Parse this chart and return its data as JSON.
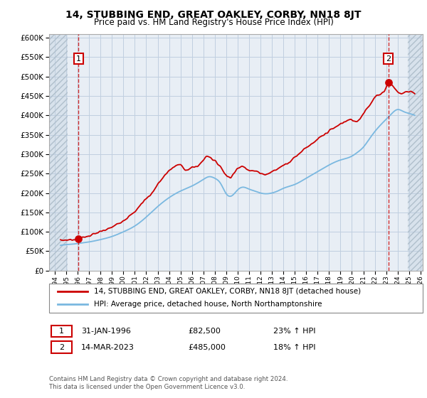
{
  "title": "14, STUBBING END, GREAT OAKLEY, CORBY, NN18 8JT",
  "subtitle": "Price paid vs. HM Land Registry's House Price Index (HPI)",
  "legend_line1": "14, STUBBING END, GREAT OAKLEY, CORBY, NN18 8JT (detached house)",
  "legend_line2": "HPI: Average price, detached house, North Northamptonshire",
  "annotation1_date": "31-JAN-1996",
  "annotation1_price": "£82,500",
  "annotation1_hpi": "23% ↑ HPI",
  "annotation2_date": "14-MAR-2023",
  "annotation2_price": "£485,000",
  "annotation2_hpi": "18% ↑ HPI",
  "footnote": "Contains HM Land Registry data © Crown copyright and database right 2024.\nThis data is licensed under the Open Government Licence v3.0.",
  "sale1_year": 1996.08,
  "sale1_price": 82500,
  "sale2_year": 2023.2,
  "sale2_price": 485000,
  "hpi_color": "#7ab8e0",
  "price_color": "#cc0000",
  "grid_color": "#c0cfe0",
  "plot_bg_color": "#e8eef5",
  "hatch_bg_color": "#d8e2ec",
  "ylim": [
    0,
    610000
  ],
  "xlim_start": 1993.5,
  "xlim_end": 2026.2,
  "hatch_left_end": 1995.1,
  "hatch_right_start": 2024.9
}
